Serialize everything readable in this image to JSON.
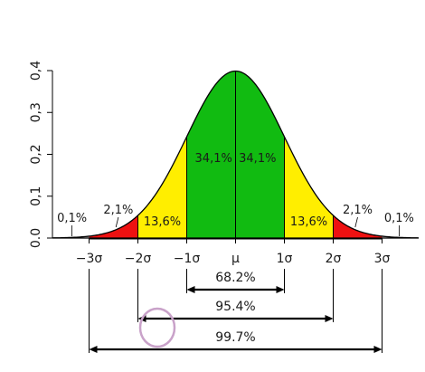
{
  "chart_data": {
    "type": "area",
    "title": "",
    "xlabel": "",
    "ylabel": "",
    "ylim": [
      0,
      0.4
    ],
    "xlim": [
      -3.75,
      3.75
    ],
    "curve": "normal-density",
    "y_ticks": [
      "0.0",
      "0,1",
      "0,2",
      "0,3",
      "0,4"
    ],
    "y_tick_values": [
      0,
      0.1,
      0.2,
      0.3,
      0.4
    ],
    "x_ticks": [
      {
        "value": -3,
        "label": "−3σ"
      },
      {
        "value": -2,
        "label": "−2σ"
      },
      {
        "value": -1,
        "label": "−1σ"
      },
      {
        "value": 0,
        "label": "μ"
      },
      {
        "value": 1,
        "label": "1σ"
      },
      {
        "value": 2,
        "label": "2σ"
      },
      {
        "value": 3,
        "label": "3σ"
      }
    ],
    "regions": [
      {
        "from": -3.75,
        "to": -3,
        "percent_label": "0,1%",
        "color": "#d8d8d8"
      },
      {
        "from": -3,
        "to": -2,
        "percent_label": "2,1%",
        "color": "#ee1111"
      },
      {
        "from": -2,
        "to": -1,
        "percent_label": "13,6%",
        "color": "#ffee00"
      },
      {
        "from": -1,
        "to": 0,
        "percent_label": "34,1%",
        "color": "#11bb11"
      },
      {
        "from": 0,
        "to": 1,
        "percent_label": "34,1%",
        "color": "#11bb11"
      },
      {
        "from": 1,
        "to": 2,
        "percent_label": "13,6%",
        "color": "#ffee00"
      },
      {
        "from": 2,
        "to": 3,
        "percent_label": "2,1%",
        "color": "#ee1111"
      },
      {
        "from": 3,
        "to": 3.75,
        "percent_label": "0,1%",
        "color": "#d8d8d8"
      }
    ],
    "spans": [
      {
        "from": -1,
        "to": 1,
        "label": "68.2%"
      },
      {
        "from": -2,
        "to": 2,
        "label": "95.4%"
      },
      {
        "from": -3,
        "to": 3,
        "label": "99.7%"
      }
    ]
  },
  "annotation": {
    "shape": "circle",
    "color": "#c9a2c9"
  }
}
